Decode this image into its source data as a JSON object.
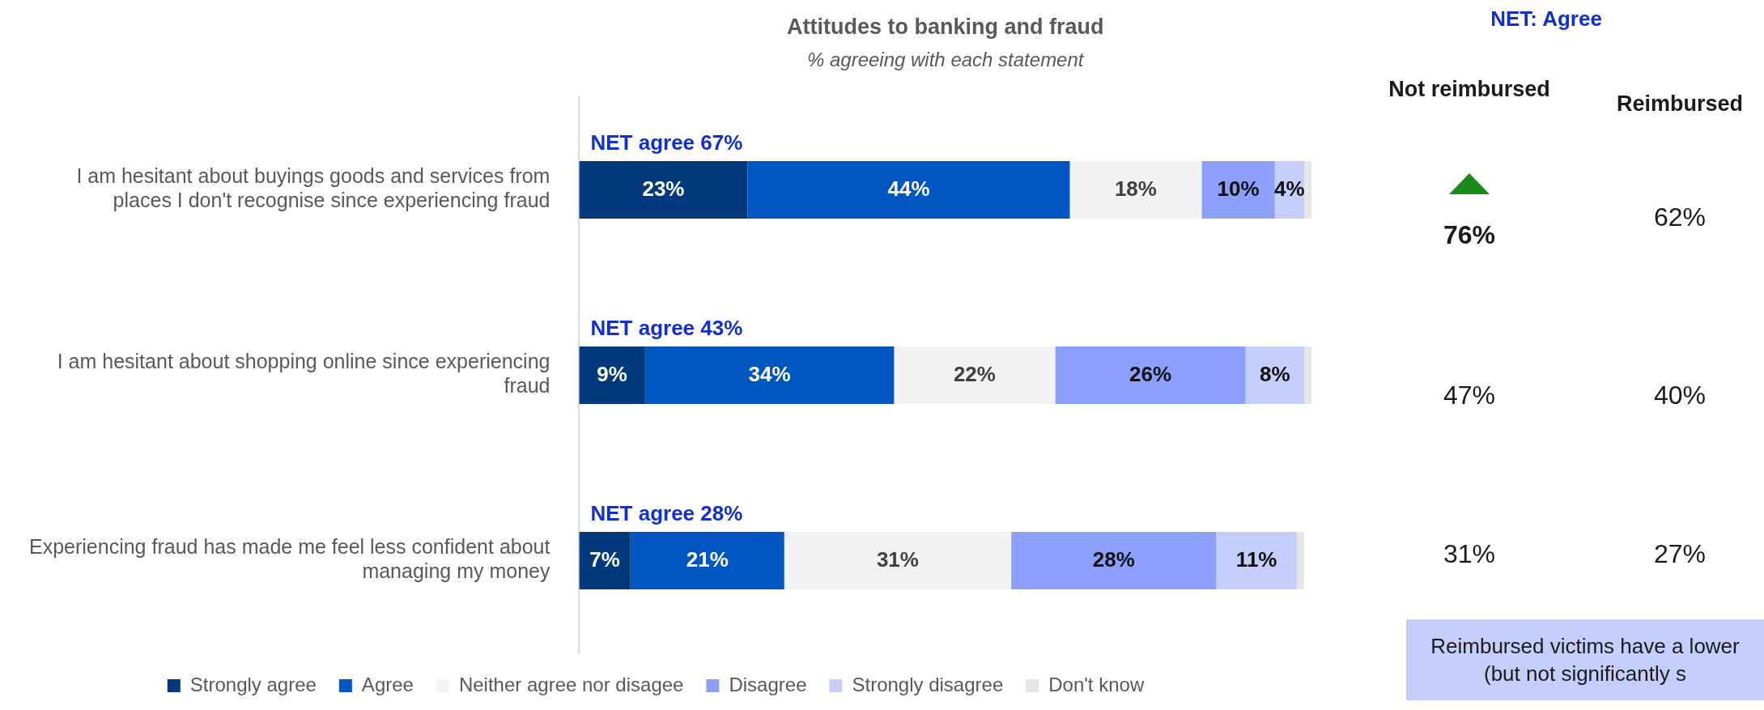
{
  "chart_data": {
    "type": "bar",
    "orientation": "horizontal",
    "stacked": true,
    "title": "Attitudes to banking and fraud",
    "subtitle": "% agreeing with each statement",
    "categories": [
      "I am hesitant about buyings goods and services from places I don't recognise since experiencing fraud",
      "I am hesitant about shopping online since experiencing fraud",
      "Experiencing fraud has made me feel less confident about managing my money"
    ],
    "series": [
      {
        "name": "Strongly agree",
        "color": "#003a7d",
        "values": [
          23,
          9,
          7
        ],
        "value_labels": [
          "23%",
          "9%",
          "7%"
        ]
      },
      {
        "name": "Agree",
        "color": "#0057c2",
        "values": [
          44,
          34,
          21
        ],
        "value_labels": [
          "44%",
          "34%",
          "21%"
        ]
      },
      {
        "name": "Neither agree nor disagee",
        "color": "#f2f2f2",
        "values": [
          18,
          22,
          31
        ],
        "value_labels": [
          "18%",
          "22%",
          "31%"
        ]
      },
      {
        "name": "Disagree",
        "color": "#8ca0fb",
        "values": [
          10,
          26,
          28
        ],
        "value_labels": [
          "10%",
          "26%",
          "28%"
        ]
      },
      {
        "name": "Strongly disagree",
        "color": "#c5cdfa",
        "values": [
          4,
          8,
          11
        ],
        "value_labels": [
          "4%",
          "8%",
          "11%"
        ]
      },
      {
        "name": "Don't know",
        "color": "#e6e6e6",
        "values": [
          1,
          1,
          1
        ],
        "value_labels": [
          null,
          null,
          null
        ]
      }
    ],
    "xlim": [
      0,
      100
    ],
    "tick_labels": "y",
    "legend": "bottom",
    "annotations": [
      "NET agree 67%",
      "NET agree 43%",
      "NET agree 28%",
      "NET: Agree",
      "Not reimbursed",
      "Reimbursed",
      "76%",
      "62%",
      "47%",
      "40%",
      "31%",
      "27%",
      "Reimbursed victims have a lower (but not significantly s"
    ]
  }
}
